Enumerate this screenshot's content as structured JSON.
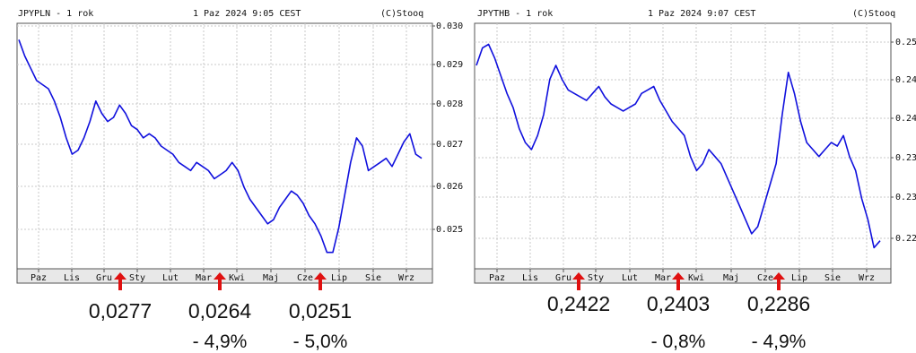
{
  "chart_data": [
    {
      "type": "line",
      "header_left": "JPYPLN - 1 rok",
      "header_center": "1 Paz 2024 9:05 CEST",
      "header_right": "(C)Stooq",
      "x_ticks": [
        "Paz",
        "Lis",
        "Gru",
        "Sty",
        "Lut",
        "Mar",
        "Kwi",
        "Maj",
        "Cze",
        "Lip",
        "Sie",
        "Wrz"
      ],
      "y_ticks": [
        "0.030",
        "0.029",
        "0.028",
        "0.027",
        "0.026",
        "0.025"
      ],
      "ylim": [
        0.024,
        0.03
      ],
      "grid": true,
      "series": [
        {
          "values": [
            0.0296,
            0.0292,
            0.0289,
            0.0286,
            0.0285,
            0.0284,
            0.0281,
            0.0277,
            0.0272,
            0.0268,
            0.0269,
            0.0272,
            0.0276,
            0.0281,
            0.0278,
            0.0276,
            0.0277,
            0.028,
            0.0278,
            0.0275,
            0.0274,
            0.0272,
            0.0273,
            0.0272,
            0.027,
            0.0269,
            0.0268,
            0.0266,
            0.0265,
            0.0264,
            0.0266,
            0.0265,
            0.0264,
            0.0262,
            0.0263,
            0.0264,
            0.0266,
            0.0264,
            0.026,
            0.0257,
            0.0255,
            0.0253,
            0.0251,
            0.0252,
            0.0255,
            0.0257,
            0.0259,
            0.0258,
            0.0256,
            0.0253,
            0.0251,
            0.0248,
            0.0244,
            0.0244,
            0.025,
            0.0258,
            0.0266,
            0.0272,
            0.027,
            0.0264,
            0.0265,
            0.0266,
            0.0267,
            0.0265,
            0.0268,
            0.0271,
            0.0273,
            0.0268,
            0.0267
          ]
        }
      ],
      "markers": [
        {
          "value": "0,0277",
          "change": ""
        },
        {
          "value": "0,0264",
          "change": "- 4,9%"
        },
        {
          "value": "0,0251",
          "change": "- 5,0%"
        }
      ]
    },
    {
      "type": "line",
      "header_left": "JPYTHB - 1 rok",
      "header_center": "1 Paz 2024 9:07 CEST",
      "header_right": "(C)Stooq",
      "x_ticks": [
        "Paz",
        "Lis",
        "Gru",
        "Sty",
        "Lut",
        "Mar",
        "Kwi",
        "Maj",
        "Cze",
        "Lip",
        "Sie",
        "Wrz"
      ],
      "y_ticks": [
        "0.25",
        "0.24",
        "0.24",
        "0.23",
        "0.23",
        "0.22"
      ],
      "ylim": [
        0.217,
        0.252
      ],
      "grid": true,
      "series": [
        {
          "values": [
            0.246,
            0.2485,
            0.249,
            0.247,
            0.2445,
            0.242,
            0.24,
            0.237,
            0.235,
            0.234,
            0.236,
            0.239,
            0.244,
            0.246,
            0.244,
            0.2425,
            0.242,
            0.2415,
            0.241,
            0.242,
            0.243,
            0.2415,
            0.2405,
            0.24,
            0.2395,
            0.24,
            0.2405,
            0.242,
            0.2425,
            0.243,
            0.241,
            0.2395,
            0.238,
            0.237,
            0.236,
            0.233,
            0.231,
            0.232,
            0.234,
            0.233,
            0.232,
            0.23,
            0.228,
            0.226,
            0.224,
            0.222,
            0.223,
            0.226,
            0.229,
            0.232,
            0.239,
            0.245,
            0.242,
            0.238,
            0.235,
            0.234,
            0.233,
            0.234,
            0.235,
            0.2345,
            0.236,
            0.233,
            0.231,
            0.227,
            0.224,
            0.22,
            0.221
          ]
        }
      ],
      "markers": [
        {
          "value": "0,2422",
          "change": ""
        },
        {
          "value": "0,2403",
          "change": "- 0,8%"
        },
        {
          "value": "0,2286",
          "change": "- 4,9%"
        }
      ]
    }
  ]
}
